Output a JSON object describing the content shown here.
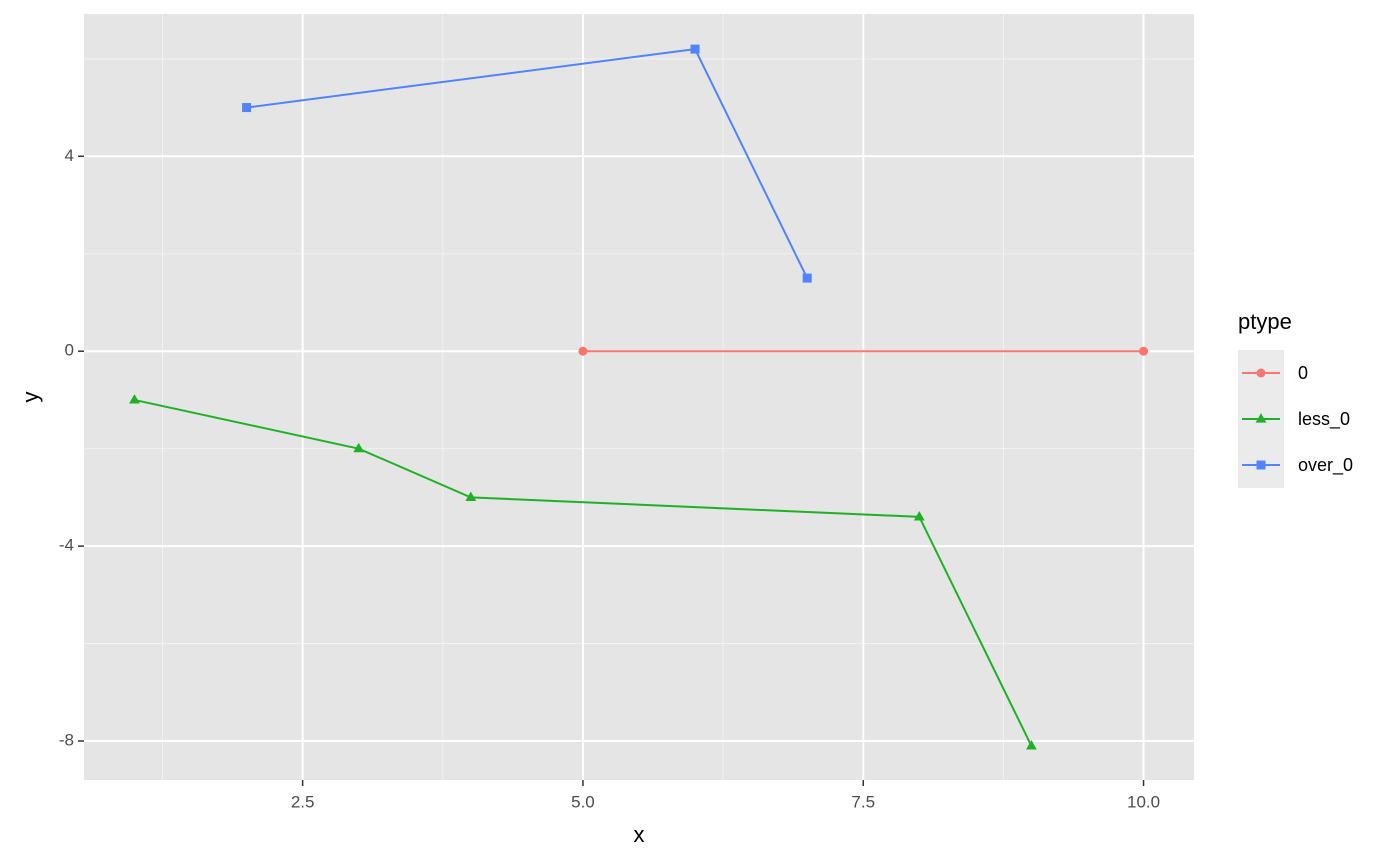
{
  "chart_data": {
    "type": "line",
    "x_label": "x",
    "y_label": "y",
    "xlim": [
      0.55,
      10.45
    ],
    "ylim": [
      -8.8,
      6.92
    ],
    "xticks": [
      {
        "value": 2.5,
        "label": "2.5"
      },
      {
        "value": 5,
        "label": "5.0"
      },
      {
        "value": 7.5,
        "label": "7.5"
      },
      {
        "value": 10,
        "label": "10.0"
      }
    ],
    "yticks": [
      4,
      0,
      -4,
      -8
    ],
    "grid": true,
    "legend_title": "ptype",
    "legend_position": "right",
    "series": [
      {
        "name": "0",
        "color": "#f8766d",
        "marker": "circle",
        "x": [
          5,
          10
        ],
        "values": [
          0,
          0
        ]
      },
      {
        "name": "less_0",
        "color": "#1fb125",
        "marker": "triangle",
        "x": [
          1,
          3,
          4,
          8,
          9
        ],
        "values": [
          -1,
          -2,
          -3,
          -3.4,
          -8.1
        ]
      },
      {
        "name": "over_0",
        "color": "#5183ff",
        "marker": "square",
        "x": [
          2,
          6,
          7
        ],
        "values": [
          5,
          6.2,
          1.5
        ]
      }
    ]
  }
}
